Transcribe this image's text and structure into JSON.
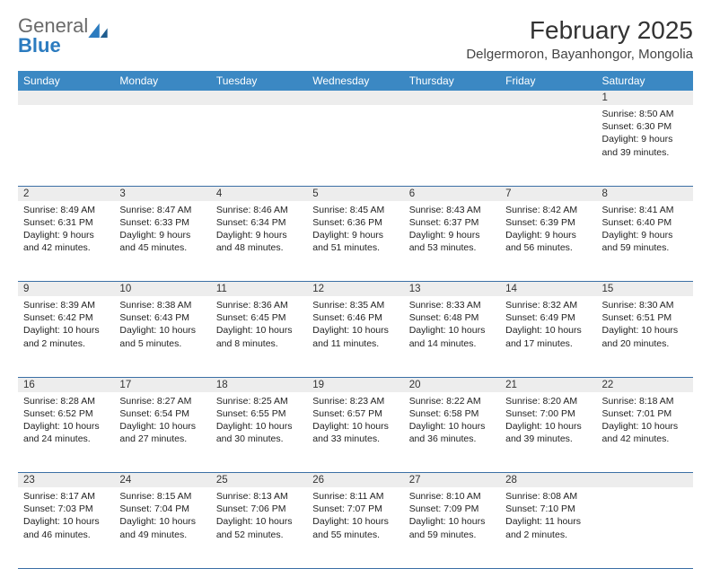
{
  "logo": {
    "text1": "General",
    "text2": "Blue"
  },
  "title": "February 2025",
  "location": "Delgermoron, Bayanhongor, Mongolia",
  "colors": {
    "header_bg": "#3b88c3",
    "header_fg": "#ffffff",
    "daynum_bg": "#ededed",
    "rule": "#3b6fa5",
    "logo_gray": "#6a6a6a",
    "logo_blue": "#2b7bbf"
  },
  "weekdays": [
    "Sunday",
    "Monday",
    "Tuesday",
    "Wednesday",
    "Thursday",
    "Friday",
    "Saturday"
  ],
  "weeks": [
    {
      "nums": [
        "",
        "",
        "",
        "",
        "",
        "",
        "1"
      ],
      "cells": [
        "",
        "",
        "",
        "",
        "",
        "",
        "Sunrise: 8:50 AM\nSunset: 6:30 PM\nDaylight: 9 hours and 39 minutes."
      ]
    },
    {
      "nums": [
        "2",
        "3",
        "4",
        "5",
        "6",
        "7",
        "8"
      ],
      "cells": [
        "Sunrise: 8:49 AM\nSunset: 6:31 PM\nDaylight: 9 hours and 42 minutes.",
        "Sunrise: 8:47 AM\nSunset: 6:33 PM\nDaylight: 9 hours and 45 minutes.",
        "Sunrise: 8:46 AM\nSunset: 6:34 PM\nDaylight: 9 hours and 48 minutes.",
        "Sunrise: 8:45 AM\nSunset: 6:36 PM\nDaylight: 9 hours and 51 minutes.",
        "Sunrise: 8:43 AM\nSunset: 6:37 PM\nDaylight: 9 hours and 53 minutes.",
        "Sunrise: 8:42 AM\nSunset: 6:39 PM\nDaylight: 9 hours and 56 minutes.",
        "Sunrise: 8:41 AM\nSunset: 6:40 PM\nDaylight: 9 hours and 59 minutes."
      ]
    },
    {
      "nums": [
        "9",
        "10",
        "11",
        "12",
        "13",
        "14",
        "15"
      ],
      "cells": [
        "Sunrise: 8:39 AM\nSunset: 6:42 PM\nDaylight: 10 hours and 2 minutes.",
        "Sunrise: 8:38 AM\nSunset: 6:43 PM\nDaylight: 10 hours and 5 minutes.",
        "Sunrise: 8:36 AM\nSunset: 6:45 PM\nDaylight: 10 hours and 8 minutes.",
        "Sunrise: 8:35 AM\nSunset: 6:46 PM\nDaylight: 10 hours and 11 minutes.",
        "Sunrise: 8:33 AM\nSunset: 6:48 PM\nDaylight: 10 hours and 14 minutes.",
        "Sunrise: 8:32 AM\nSunset: 6:49 PM\nDaylight: 10 hours and 17 minutes.",
        "Sunrise: 8:30 AM\nSunset: 6:51 PM\nDaylight: 10 hours and 20 minutes."
      ]
    },
    {
      "nums": [
        "16",
        "17",
        "18",
        "19",
        "20",
        "21",
        "22"
      ],
      "cells": [
        "Sunrise: 8:28 AM\nSunset: 6:52 PM\nDaylight: 10 hours and 24 minutes.",
        "Sunrise: 8:27 AM\nSunset: 6:54 PM\nDaylight: 10 hours and 27 minutes.",
        "Sunrise: 8:25 AM\nSunset: 6:55 PM\nDaylight: 10 hours and 30 minutes.",
        "Sunrise: 8:23 AM\nSunset: 6:57 PM\nDaylight: 10 hours and 33 minutes.",
        "Sunrise: 8:22 AM\nSunset: 6:58 PM\nDaylight: 10 hours and 36 minutes.",
        "Sunrise: 8:20 AM\nSunset: 7:00 PM\nDaylight: 10 hours and 39 minutes.",
        "Sunrise: 8:18 AM\nSunset: 7:01 PM\nDaylight: 10 hours and 42 minutes."
      ]
    },
    {
      "nums": [
        "23",
        "24",
        "25",
        "26",
        "27",
        "28",
        ""
      ],
      "cells": [
        "Sunrise: 8:17 AM\nSunset: 7:03 PM\nDaylight: 10 hours and 46 minutes.",
        "Sunrise: 8:15 AM\nSunset: 7:04 PM\nDaylight: 10 hours and 49 minutes.",
        "Sunrise: 8:13 AM\nSunset: 7:06 PM\nDaylight: 10 hours and 52 minutes.",
        "Sunrise: 8:11 AM\nSunset: 7:07 PM\nDaylight: 10 hours and 55 minutes.",
        "Sunrise: 8:10 AM\nSunset: 7:09 PM\nDaylight: 10 hours and 59 minutes.",
        "Sunrise: 8:08 AM\nSunset: 7:10 PM\nDaylight: 11 hours and 2 minutes.",
        ""
      ]
    }
  ]
}
